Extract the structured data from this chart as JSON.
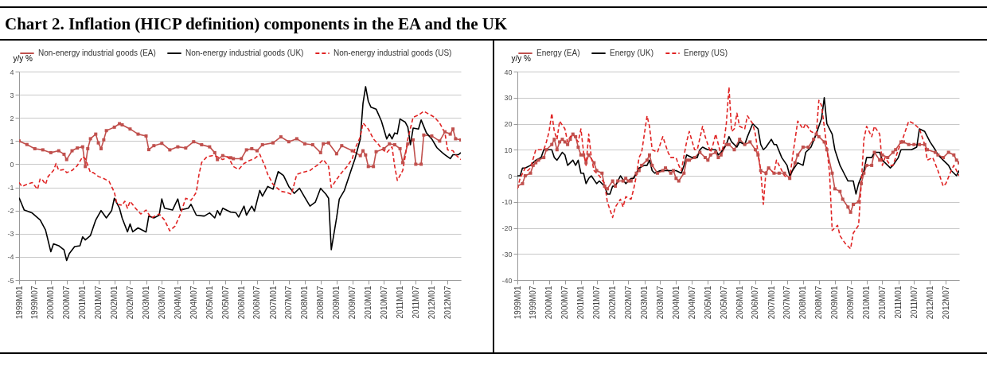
{
  "chart_data": [
    {
      "type": "line",
      "title": "Chart 2. Inflation (HICP definition) components in the EA and the UK",
      "ylabel": "y/y %",
      "xlim": [
        "1999-01",
        "2012-12"
      ],
      "ylim": [
        -5,
        4
      ],
      "yticks": [
        -5,
        -4,
        -3,
        -2,
        -1,
        0,
        1,
        2,
        3,
        4
      ],
      "xticks": [
        {
          "value": "1999-01",
          "label": "1999M01"
        },
        {
          "value": "1999-07",
          "label": "1999M07"
        },
        {
          "value": "2000-01",
          "label": "2000M01"
        },
        {
          "value": "2000-07",
          "label": "2000M07"
        },
        {
          "value": "2001-01",
          "label": "2001M01"
        },
        {
          "value": "2001-07",
          "label": "2001M07"
        },
        {
          "value": "2002-01",
          "label": "2002M01"
        },
        {
          "value": "2002-07",
          "label": "2002M07"
        },
        {
          "value": "2003-01",
          "label": "2003M01"
        },
        {
          "value": "2003-07",
          "label": "2003M07"
        },
        {
          "value": "2004-01",
          "label": "2004M01"
        },
        {
          "value": "2004-07",
          "label": "2004M07"
        },
        {
          "value": "2005-01",
          "label": "2005M01"
        },
        {
          "value": "2005-07",
          "label": "2005M07"
        },
        {
          "value": "2006-01",
          "label": "2006M01"
        },
        {
          "value": "2006-07",
          "label": "2006M07"
        },
        {
          "value": "2007-01",
          "label": "2007M01"
        },
        {
          "value": "2007-07",
          "label": "2007M07"
        },
        {
          "value": "2008-01",
          "label": "2008M01"
        },
        {
          "value": "2008-07",
          "label": "2008M07"
        },
        {
          "value": "2009-01",
          "label": "2009M01"
        },
        {
          "value": "2009-07",
          "label": "2009M07"
        },
        {
          "value": "2010-01",
          "label": "2010M01"
        },
        {
          "value": "2010-07",
          "label": "2010M07"
        },
        {
          "value": "2011-01",
          "label": "2011M01"
        },
        {
          "value": "2011-07",
          "label": "2011M07"
        },
        {
          "value": "2012-01",
          "label": "2012M01"
        },
        {
          "value": "2012-07",
          "label": "2012M07"
        }
      ],
      "grid": "y",
      "legend": "top",
      "series": [
        {
          "name": "Non-energy industrial goods (EA)",
          "color": "#c0504d",
          "marker": "square",
          "line_style": "solid",
          "x": [
            "1999-01",
            "1999-04",
            "1999-07",
            "1999-10",
            "2000-01",
            "2000-04",
            "2000-06",
            "2000-07",
            "2000-09",
            "2000-11",
            "2001-01",
            "2001-02",
            "2001-03",
            "2001-04",
            "2001-06",
            "2001-07",
            "2001-08",
            "2001-09",
            "2001-10",
            "2002-01",
            "2002-03",
            "2002-04",
            "2002-07",
            "2002-10",
            "2003-01",
            "2003-02",
            "2003-04",
            "2003-07",
            "2003-10",
            "2004-01",
            "2004-04",
            "2004-07",
            "2004-10",
            "2005-01",
            "2005-03",
            "2005-04",
            "2005-06",
            "2005-09",
            "2005-10",
            "2006-01",
            "2006-03",
            "2006-05",
            "2006-07",
            "2006-09",
            "2007-01",
            "2007-04",
            "2007-07",
            "2007-10",
            "2008-01",
            "2008-04",
            "2008-07",
            "2008-08",
            "2008-10",
            "2009-01",
            "2009-03",
            "2009-07",
            "2009-10",
            "2009-11",
            "2009-12",
            "2010-01",
            "2010-03",
            "2010-04",
            "2010-07",
            "2010-09",
            "2010-11",
            "2011-01",
            "2011-02",
            "2011-04",
            "2011-06",
            "2011-07",
            "2011-09",
            "2011-10",
            "2012-01",
            "2012-04",
            "2012-06",
            "2012-08",
            "2012-09",
            "2012-10",
            "2012-12"
          ],
          "values": [
            1.0,
            0.85,
            0.67,
            0.62,
            0.5,
            0.58,
            0.43,
            0.2,
            0.58,
            0.7,
            0.75,
            -0.1,
            0.67,
            1.1,
            1.3,
            0.92,
            0.67,
            1.05,
            1.45,
            1.6,
            1.75,
            1.7,
            1.52,
            1.3,
            1.22,
            0.63,
            0.8,
            0.9,
            0.62,
            0.75,
            0.7,
            0.97,
            0.84,
            0.75,
            0.5,
            0.2,
            0.37,
            0.28,
            0.24,
            0.24,
            0.62,
            0.67,
            0.58,
            0.84,
            0.92,
            1.18,
            0.97,
            1.1,
            0.88,
            0.84,
            0.5,
            0.88,
            0.92,
            0.45,
            0.8,
            0.58,
            0.37,
            0.58,
            0.4,
            -0.1,
            -0.1,
            0.54,
            0.67,
            0.88,
            0.84,
            0.67,
            0.07,
            0.88,
            1.05,
            0,
            0,
            1.26,
            1.22,
            1.0,
            1.4,
            1.3,
            1.52,
            1.1,
            1.05
          ]
        },
        {
          "name": "Non-energy industrial goods (UK)",
          "color": "#000000",
          "marker": "none",
          "line_style": "solid",
          "x": [
            "1999-01",
            "1999-03",
            "1999-06",
            "1999-09",
            "1999-11",
            "2000-01",
            "2000-02",
            "2000-04",
            "2000-06",
            "2000-07",
            "2000-08",
            "2000-10",
            "2000-12",
            "2001-01",
            "2001-02",
            "2001-04",
            "2001-06",
            "2001-08",
            "2001-10",
            "2001-12",
            "2002-01",
            "2002-03",
            "2002-04",
            "2002-06",
            "2002-07",
            "2002-08",
            "2002-10",
            "2003-01",
            "2003-02",
            "2003-04",
            "2003-06",
            "2003-07",
            "2003-08",
            "2003-11",
            "2004-01",
            "2004-02",
            "2004-05",
            "2004-06",
            "2004-08",
            "2004-11",
            "2005-01",
            "2005-03",
            "2005-04",
            "2005-05",
            "2005-06",
            "2005-09",
            "2005-11",
            "2005-12",
            "2006-02",
            "2006-03",
            "2006-05",
            "2006-06",
            "2006-08",
            "2006-09",
            "2006-11",
            "2007-01",
            "2007-03",
            "2007-05",
            "2007-07",
            "2007-09",
            "2007-11",
            "2008-01",
            "2008-03",
            "2008-05",
            "2008-07",
            "2008-09",
            "2008-10",
            "2008-11",
            "2009-01",
            "2009-02",
            "2009-04",
            "2009-06",
            "2009-08",
            "2009-10",
            "2009-11",
            "2009-12",
            "2010-01",
            "2010-02",
            "2010-04",
            "2010-06",
            "2010-08",
            "2010-09",
            "2010-10",
            "2010-11",
            "2010-12",
            "2011-01",
            "2011-03",
            "2011-04",
            "2011-05",
            "2011-06",
            "2011-08",
            "2011-09",
            "2011-11",
            "2012-01",
            "2012-03",
            "2012-05",
            "2012-06",
            "2012-08",
            "2012-09",
            "2012-11",
            "2012-12"
          ],
          "values": [
            -1.45,
            -1.98,
            -2.11,
            -2.41,
            -2.84,
            -3.78,
            -3.44,
            -3.52,
            -3.7,
            -4.16,
            -3.86,
            -3.56,
            -3.52,
            -3.14,
            -3.27,
            -3.08,
            -2.41,
            -2.0,
            -2.32,
            -2.0,
            -1.47,
            -1.9,
            -2.33,
            -2.92,
            -2.58,
            -2.92,
            -2.75,
            -2.93,
            -2.24,
            -2.32,
            -2.2,
            -1.5,
            -1.9,
            -1.98,
            -1.5,
            -1.98,
            -1.9,
            -1.73,
            -2.2,
            -2.24,
            -2.1,
            -2.32,
            -2.0,
            -2.2,
            -1.9,
            -2.07,
            -2.1,
            -2.28,
            -1.81,
            -2.2,
            -1.81,
            -2.03,
            -1.13,
            -1.38,
            -0.96,
            -1.08,
            -0.32,
            -0.49,
            -0.96,
            -1.26,
            -1.04,
            -1.43,
            -1.81,
            -1.64,
            -1.04,
            -1.3,
            -1.47,
            -3.69,
            -2.32,
            -1.51,
            -1.13,
            -0.44,
            0.24,
            1.09,
            2.63,
            3.35,
            2.72,
            2.46,
            2.38,
            1.86,
            1.09,
            1.31,
            1.09,
            1.35,
            1.31,
            1.95,
            1.82,
            1.6,
            0.84,
            1.56,
            1.52,
            1.91,
            1.35,
            1.09,
            0.71,
            0.5,
            0.41,
            0.24,
            0.41,
            0.41,
            0.5
          ]
        },
        {
          "name": "Non-energy industrial goods (US)",
          "color": "#e02424",
          "marker": "none",
          "line_style": "dashed",
          "x": [
            "1999-01",
            "1999-02",
            "1999-04",
            "1999-06",
            "1999-08",
            "1999-09",
            "1999-10",
            "1999-11",
            "1999-12",
            "2000-02",
            "2000-03",
            "2000-04",
            "2000-06",
            "2000-07",
            "2000-09",
            "2000-11",
            "2001-01",
            "2001-02",
            "2001-04",
            "2001-05",
            "2001-07",
            "2001-09",
            "2001-11",
            "2002-01",
            "2002-02",
            "2002-04",
            "2002-05",
            "2002-06",
            "2002-07",
            "2002-09",
            "2002-11",
            "2003-01",
            "2003-03",
            "2003-06",
            "2003-08",
            "2003-10",
            "2003-12",
            "2004-02",
            "2004-04",
            "2004-06",
            "2004-08",
            "2004-09",
            "2004-10",
            "2004-12",
            "2005-02",
            "2005-04",
            "2005-06",
            "2005-08",
            "2005-10",
            "2005-12",
            "2006-02",
            "2006-04",
            "2006-06",
            "2006-08",
            "2006-10",
            "2006-11",
            "2007-01",
            "2007-04",
            "2007-06",
            "2007-08",
            "2007-10",
            "2007-12",
            "2008-03",
            "2008-06",
            "2008-08",
            "2008-10",
            "2008-11",
            "2009-01",
            "2009-03",
            "2009-05",
            "2009-07",
            "2009-08",
            "2009-10",
            "2009-11",
            "2010-01",
            "2010-03",
            "2010-05",
            "2010-06",
            "2010-08",
            "2010-10",
            "2010-11",
            "2010-12",
            "2011-02",
            "2011-03",
            "2011-04",
            "2011-06",
            "2011-08",
            "2011-10",
            "2011-12",
            "2012-02",
            "2012-04",
            "2012-06",
            "2012-07",
            "2012-09",
            "2012-10",
            "2012-12"
          ],
          "values": [
            -0.79,
            -0.96,
            -0.87,
            -0.79,
            -1.09,
            -0.62,
            -0.7,
            -0.87,
            -0.53,
            -0.27,
            0.03,
            -0.27,
            -0.23,
            -0.36,
            -0.27,
            -0.06,
            0.32,
            0.24,
            -0.36,
            -0.36,
            -0.53,
            -0.62,
            -0.74,
            -1.21,
            -1.73,
            -1.77,
            -1.6,
            -1.9,
            -1.6,
            -1.9,
            -2.15,
            -1.98,
            -2.32,
            -2.15,
            -2.41,
            -2.88,
            -2.67,
            -2.15,
            -1.47,
            -1.56,
            -1.21,
            -0.44,
            0.07,
            0.32,
            0.37,
            0.32,
            0.2,
            0.32,
            -0.1,
            -0.23,
            0.03,
            0.15,
            0.24,
            0.43,
            -0.1,
            -0.44,
            -0.87,
            -1.17,
            -1.21,
            -1.3,
            -0.44,
            -0.36,
            -0.27,
            -0.02,
            0.2,
            -0.1,
            -1.0,
            -0.66,
            -0.36,
            -0.1,
            0.24,
            0.67,
            1.18,
            1.78,
            1.52,
            1.09,
            0.84,
            0.67,
            0.5,
            0.75,
            -0.1,
            -0.7,
            -0.27,
            0.32,
            1.09,
            2.03,
            2.12,
            2.29,
            2.16,
            2.03,
            1.78,
            1.35,
            0.62,
            0.58,
            0.41,
            0.2
          ]
        }
      ]
    },
    {
      "type": "line",
      "ylabel": "y/y %",
      "xlim": [
        "1999-01",
        "2012-12"
      ],
      "ylim": [
        -40,
        40
      ],
      "yticks": [
        -40,
        -30,
        -20,
        -10,
        0,
        10,
        20,
        30,
        40
      ],
      "xticks": [
        {
          "value": "1999-01",
          "label": "1999M01"
        },
        {
          "value": "1999-07",
          "label": "1999M07"
        },
        {
          "value": "2000-01",
          "label": "2000M01"
        },
        {
          "value": "2000-07",
          "label": "2000M07"
        },
        {
          "value": "2001-01",
          "label": "2001M01"
        },
        {
          "value": "2001-07",
          "label": "2001M07"
        },
        {
          "value": "2002-01",
          "label": "2002M01"
        },
        {
          "value": "2002-07",
          "label": "2002M07"
        },
        {
          "value": "2003-01",
          "label": "2003M01"
        },
        {
          "value": "2003-07",
          "label": "2003M07"
        },
        {
          "value": "2004-01",
          "label": "2004M01"
        },
        {
          "value": "2004-07",
          "label": "2004M07"
        },
        {
          "value": "2005-01",
          "label": "2005M01"
        },
        {
          "value": "2005-07",
          "label": "2005M07"
        },
        {
          "value": "2006-01",
          "label": "2006M01"
        },
        {
          "value": "2006-07",
          "label": "2006M07"
        },
        {
          "value": "2007-01",
          "label": "2007M01"
        },
        {
          "value": "2007-07",
          "label": "2007M07"
        },
        {
          "value": "2008-01",
          "label": "2008M01"
        },
        {
          "value": "2008-07",
          "label": "2008M07"
        },
        {
          "value": "2009-01",
          "label": "2009M01"
        },
        {
          "value": "2009-07",
          "label": "2009M07"
        },
        {
          "value": "2010-01",
          "label": "2010M01"
        },
        {
          "value": "2010-07",
          "label": "2010M07"
        },
        {
          "value": "2011-01",
          "label": "2011M01"
        },
        {
          "value": "2011-07",
          "label": "2011M07"
        },
        {
          "value": "2012-01",
          "label": "2012M01"
        },
        {
          "value": "2012-07",
          "label": "2012M07"
        }
      ],
      "grid": "y",
      "legend": "top",
      "series": [
        {
          "name": "Energy (EA)",
          "color": "#c0504d",
          "marker": "square",
          "line_style": "solid",
          "x": [
            "1999-01",
            "1999-03",
            "1999-04",
            "1999-06",
            "1999-07",
            "1999-08",
            "1999-09",
            "1999-11",
            "1999-12",
            "2000-02",
            "2000-03",
            "2000-04",
            "2000-05",
            "2000-06",
            "2000-07",
            "2000-08",
            "2000-09",
            "2000-10",
            "2000-11",
            "2000-12",
            "2001-01",
            "2001-02",
            "2001-03",
            "2001-04",
            "2001-06",
            "2001-07",
            "2001-09",
            "2001-10",
            "2001-11",
            "2002-01",
            "2002-02",
            "2002-03",
            "2002-05",
            "2002-06",
            "2002-07",
            "2002-08",
            "2002-10",
            "2002-11",
            "2002-12",
            "2003-02",
            "2003-03",
            "2003-04",
            "2003-06",
            "2003-08",
            "2003-09",
            "2003-11",
            "2003-12",
            "2004-01",
            "2004-02",
            "2004-04",
            "2004-05",
            "2004-06",
            "2004-08",
            "2004-10",
            "2004-12",
            "2005-01",
            "2005-02",
            "2005-04",
            "2005-05",
            "2005-06",
            "2005-08",
            "2005-09",
            "2005-11",
            "2006-01",
            "2006-03",
            "2006-05",
            "2006-07",
            "2006-08",
            "2006-09",
            "2006-11",
            "2006-12",
            "2007-02",
            "2007-04",
            "2007-06",
            "2007-08",
            "2007-10",
            "2007-11",
            "2008-01",
            "2008-03",
            "2008-05",
            "2008-06",
            "2008-07",
            "2008-09",
            "2008-10",
            "2008-12",
            "2009-01",
            "2009-03",
            "2009-04",
            "2009-06",
            "2009-07",
            "2009-08",
            "2009-10",
            "2009-11",
            "2009-12",
            "2010-01",
            "2010-03",
            "2010-04",
            "2010-06",
            "2010-07",
            "2010-09",
            "2010-11",
            "2010-12",
            "2011-02",
            "2011-03",
            "2011-05",
            "2011-07",
            "2011-09",
            "2011-11",
            "2011-12",
            "2012-03",
            "2012-04",
            "2012-06",
            "2012-08",
            "2012-10",
            "2012-11",
            "2012-12"
          ],
          "values": [
            -4,
            -3,
            0,
            1,
            4,
            5,
            6,
            7,
            10,
            12,
            14,
            10,
            13,
            14,
            13,
            12,
            14,
            16,
            15,
            11,
            8,
            8,
            5,
            8,
            5,
            2,
            1,
            -4,
            -5,
            -2,
            -4,
            -2,
            -2,
            -1,
            -2,
            -2,
            1,
            2,
            4,
            6,
            8,
            4,
            1,
            2,
            3,
            1,
            2,
            -1,
            -2,
            1,
            6,
            6,
            7,
            9,
            7,
            6,
            8,
            9,
            7,
            8,
            12,
            12,
            10,
            14,
            12,
            13,
            10,
            8,
            2,
            1,
            3,
            1,
            1,
            1,
            -1,
            5,
            8,
            11,
            11,
            14,
            16,
            15,
            13,
            10,
            1,
            -5,
            -6,
            -9,
            -12,
            -14,
            -11,
            -10,
            -3,
            1,
            4,
            4,
            9,
            6,
            8,
            7,
            9,
            10,
            13,
            13,
            12,
            12,
            12,
            12,
            10,
            9,
            8,
            7,
            9,
            8,
            6,
            5
          ]
        },
        {
          "name": "Energy (UK)",
          "color": "#000000",
          "marker": "none",
          "line_style": "solid",
          "x": [
            "1999-01",
            "1999-02",
            "1999-03",
            "1999-04",
            "1999-06",
            "1999-07",
            "1999-08",
            "1999-10",
            "1999-11",
            "2000-01",
            "2000-02",
            "2000-03",
            "2000-04",
            "2000-06",
            "2000-07",
            "2000-08",
            "2000-09",
            "2000-10",
            "2000-11",
            "2000-12",
            "2001-01",
            "2001-02",
            "2001-03",
            "2001-04",
            "2001-05",
            "2001-07",
            "2001-08",
            "2001-10",
            "2001-11",
            "2001-12",
            "2002-01",
            "2002-02",
            "2002-04",
            "2002-06",
            "2002-08",
            "2002-09",
            "2002-10",
            "2002-11",
            "2003-01",
            "2003-02",
            "2003-03",
            "2003-04",
            "2003-05",
            "2003-07",
            "2003-08",
            "2003-10",
            "2003-11",
            "2004-01",
            "2004-03",
            "2004-04",
            "2004-05",
            "2004-07",
            "2004-09",
            "2004-10",
            "2004-11",
            "2005-01",
            "2005-02",
            "2005-04",
            "2005-05",
            "2005-06",
            "2005-08",
            "2005-09",
            "2005-10",
            "2005-12",
            "2006-01",
            "2006-03",
            "2006-04",
            "2006-06",
            "2006-07",
            "2006-08",
            "2006-09",
            "2006-10",
            "2006-11",
            "2007-01",
            "2007-02",
            "2007-03",
            "2007-05",
            "2007-07",
            "2007-08",
            "2007-09",
            "2007-11",
            "2008-01",
            "2008-02",
            "2008-04",
            "2008-06",
            "2008-07",
            "2008-08",
            "2008-09",
            "2008-10",
            "2008-12",
            "2009-01",
            "2009-03",
            "2009-05",
            "2009-06",
            "2009-08",
            "2009-09",
            "2009-10",
            "2009-12",
            "2010-01",
            "2010-03",
            "2010-04",
            "2010-06",
            "2010-07",
            "2010-09",
            "2010-10",
            "2010-11",
            "2011-01",
            "2011-02",
            "2011-04",
            "2011-06",
            "2011-08",
            "2011-09",
            "2011-11",
            "2012-01",
            "2012-03",
            "2012-04",
            "2012-06",
            "2012-08",
            "2012-09",
            "2012-11",
            "2012-12"
          ],
          "values": [
            0,
            0,
            3,
            3,
            4,
            5,
            6,
            7,
            10,
            10,
            10,
            7,
            6,
            9,
            8,
            4,
            5,
            6,
            4,
            6,
            1,
            1,
            -3,
            -1,
            0,
            -3,
            -2,
            -4,
            -7,
            -7,
            -4,
            -4,
            0,
            -3,
            -1,
            -1,
            1,
            3,
            4,
            4,
            6,
            2,
            1,
            2,
            2,
            2,
            2,
            2,
            1,
            4,
            8,
            7,
            7,
            10,
            11,
            10,
            10,
            10,
            8,
            9,
            12,
            15,
            13,
            11,
            13,
            12,
            15,
            20,
            19,
            18,
            12,
            10,
            11,
            14,
            12,
            12,
            7,
            4,
            0,
            2,
            5,
            4,
            9,
            11,
            16,
            19,
            22,
            30,
            20,
            16,
            10,
            4,
            0,
            -2,
            -2,
            -7,
            -3,
            2,
            7,
            7,
            9,
            9,
            6,
            4,
            3,
            4,
            7,
            10,
            10,
            10,
            11,
            18,
            17,
            13,
            10,
            8,
            6,
            4,
            2,
            0,
            2
          ]
        },
        {
          "name": "Energy (US)",
          "color": "#e02424",
          "marker": "none",
          "line_style": "dashed",
          "x": [
            "1999-01",
            "1999-02",
            "1999-04",
            "1999-05",
            "1999-06",
            "1999-08",
            "1999-09",
            "1999-11",
            "1999-12",
            "2000-01",
            "2000-02",
            "2000-03",
            "2000-04",
            "2000-05",
            "2000-07",
            "2000-08",
            "2000-09",
            "2000-10",
            "2000-12",
            "2001-01",
            "2001-02",
            "2001-03",
            "2001-04",
            "2001-05",
            "2001-06",
            "2001-08",
            "2001-10",
            "2001-11",
            "2002-01",
            "2002-02",
            "2002-04",
            "2002-05",
            "2002-06",
            "2002-08",
            "2002-09",
            "2002-10",
            "2002-11",
            "2002-12",
            "2003-01",
            "2003-02",
            "2003-03",
            "2003-04",
            "2003-06",
            "2003-08",
            "2003-10",
            "2003-11",
            "2004-01",
            "2004-02",
            "2004-03",
            "2004-05",
            "2004-06",
            "2004-08",
            "2004-09",
            "2004-11",
            "2004-12",
            "2005-02",
            "2005-03",
            "2005-04",
            "2005-06",
            "2005-07",
            "2005-08",
            "2005-09",
            "2005-10",
            "2005-11",
            "2005-12",
            "2006-01",
            "2006-03",
            "2006-04",
            "2006-06",
            "2006-07",
            "2006-09",
            "2006-10",
            "2006-11",
            "2006-12",
            "2007-02",
            "2007-03",
            "2007-04",
            "2007-06",
            "2007-08",
            "2007-09",
            "2007-11",
            "2008-01",
            "2008-02",
            "2008-04",
            "2008-06",
            "2008-07",
            "2008-08",
            "2008-10",
            "2008-11",
            "2008-12",
            "2009-02",
            "2009-03",
            "2009-05",
            "2009-07",
            "2009-08",
            "2009-10",
            "2009-11",
            "2009-12",
            "2010-01",
            "2010-03",
            "2010-04",
            "2010-06",
            "2010-07",
            "2010-08",
            "2010-10",
            "2010-11",
            "2011-01",
            "2011-03",
            "2011-05",
            "2011-07",
            "2011-09",
            "2011-11",
            "2011-12",
            "2012-02",
            "2012-04",
            "2012-06",
            "2012-07",
            "2012-09",
            "2012-10",
            "2012-12"
          ],
          "values": [
            -5,
            -1,
            3,
            2,
            3,
            10,
            10,
            10,
            13,
            17,
            24,
            17,
            14,
            21,
            18,
            13,
            15,
            16,
            13,
            18,
            9,
            4,
            16,
            7,
            2,
            0,
            -3,
            -10,
            -16,
            -12,
            -9,
            -12,
            -8,
            -9,
            -5,
            0,
            7,
            9,
            16,
            23,
            19,
            10,
            9,
            15,
            9,
            7,
            7,
            4,
            2,
            13,
            17,
            10,
            10,
            19,
            15,
            9,
            12,
            16,
            8,
            12,
            20,
            34,
            17,
            18,
            24,
            19,
            18,
            23,
            20,
            16,
            2,
            -11,
            2,
            3,
            1,
            6,
            4,
            0,
            -1,
            7,
            21,
            18,
            20,
            17,
            16,
            29,
            27,
            11,
            1,
            -21,
            -19,
            -23,
            -26,
            -28,
            -22,
            -19,
            -3,
            14,
            19,
            15,
            19,
            16,
            4,
            7,
            4,
            4,
            10,
            15,
            21,
            20,
            18,
            12,
            6,
            7,
            2,
            -4,
            -3,
            2,
            4,
            0
          ]
        }
      ]
    }
  ]
}
